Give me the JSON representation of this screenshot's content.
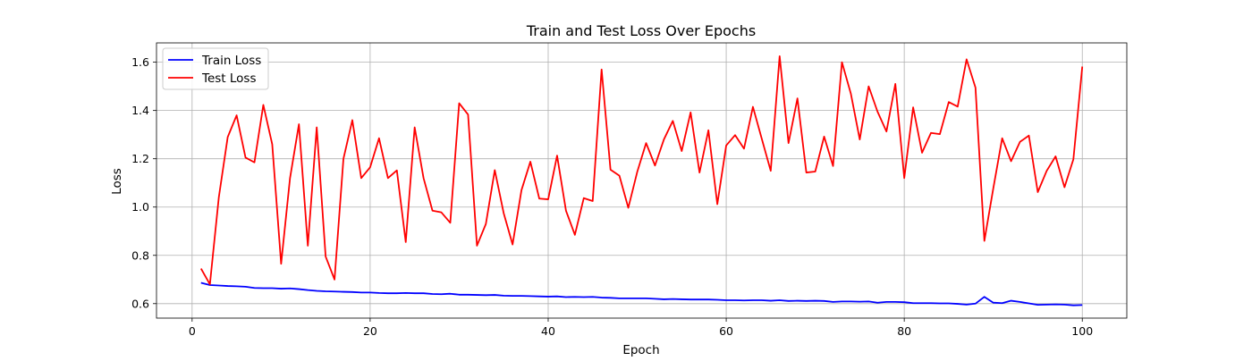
{
  "chart_data": {
    "type": "line",
    "title": "Train and Test Loss Over Epochs",
    "xlabel": "Epoch",
    "ylabel": "Loss",
    "xlim": [
      -4,
      105
    ],
    "ylim": [
      0.54,
      1.68
    ],
    "xticks": [
      0,
      20,
      40,
      60,
      80,
      100
    ],
    "yticks": [
      0.6,
      0.8,
      1.0,
      1.2,
      1.4,
      1.6
    ],
    "ytick_labels": [
      "0.6",
      "0.8",
      "1.0",
      "1.2",
      "1.4",
      "1.6"
    ],
    "grid": true,
    "legend_position": "top-left",
    "x": [
      1,
      2,
      3,
      4,
      5,
      6,
      7,
      8,
      9,
      10,
      11,
      12,
      13,
      14,
      15,
      16,
      17,
      18,
      19,
      20,
      21,
      22,
      23,
      24,
      25,
      26,
      27,
      28,
      29,
      30,
      31,
      32,
      33,
      34,
      35,
      36,
      37,
      38,
      39,
      40,
      41,
      42,
      43,
      44,
      45,
      46,
      47,
      48,
      49,
      50,
      51,
      52,
      53,
      54,
      55,
      56,
      57,
      58,
      59,
      60,
      61,
      62,
      63,
      64,
      65,
      66,
      67,
      68,
      69,
      70,
      71,
      72,
      73,
      74,
      75,
      76,
      77,
      78,
      79,
      80,
      81,
      82,
      83,
      84,
      85,
      86,
      87,
      88,
      89,
      90,
      91,
      92,
      93,
      94,
      95,
      96,
      97,
      98,
      99,
      100
    ],
    "series": [
      {
        "name": "Train Loss",
        "color": "#0000ff",
        "values": [
          0.686,
          0.677,
          0.675,
          0.673,
          0.672,
          0.67,
          0.665,
          0.664,
          0.664,
          0.662,
          0.663,
          0.66,
          0.656,
          0.653,
          0.651,
          0.65,
          0.649,
          0.648,
          0.646,
          0.646,
          0.644,
          0.643,
          0.643,
          0.644,
          0.643,
          0.643,
          0.64,
          0.639,
          0.641,
          0.637,
          0.637,
          0.636,
          0.635,
          0.636,
          0.633,
          0.632,
          0.632,
          0.631,
          0.63,
          0.629,
          0.63,
          0.627,
          0.628,
          0.627,
          0.628,
          0.625,
          0.624,
          0.622,
          0.622,
          0.622,
          0.622,
          0.62,
          0.618,
          0.619,
          0.618,
          0.617,
          0.617,
          0.617,
          0.616,
          0.614,
          0.614,
          0.613,
          0.614,
          0.614,
          0.612,
          0.614,
          0.611,
          0.612,
          0.611,
          0.612,
          0.611,
          0.607,
          0.609,
          0.609,
          0.608,
          0.609,
          0.604,
          0.607,
          0.607,
          0.606,
          0.602,
          0.602,
          0.602,
          0.601,
          0.601,
          0.599,
          0.596,
          0.6,
          0.628,
          0.604,
          0.602,
          0.612,
          0.607,
          0.601,
          0.595,
          0.596,
          0.597,
          0.596,
          0.593,
          0.594
        ]
      },
      {
        "name": "Test Loss",
        "color": "#ff0000",
        "values": [
          0.745,
          0.68,
          1.04,
          1.29,
          1.38,
          1.205,
          1.185,
          1.423,
          1.26,
          0.765,
          1.12,
          1.343,
          0.84,
          1.33,
          0.795,
          0.7,
          1.2,
          1.36,
          1.12,
          1.165,
          1.285,
          1.12,
          1.152,
          0.855,
          1.33,
          1.12,
          0.985,
          0.978,
          0.935,
          1.43,
          1.383,
          0.84,
          0.93,
          1.153,
          0.975,
          0.845,
          1.07,
          1.188,
          1.035,
          1.032,
          1.213,
          0.985,
          0.885,
          1.037,
          1.025,
          1.57,
          1.155,
          1.13,
          0.997,
          1.145,
          1.265,
          1.172,
          1.28,
          1.357,
          1.232,
          1.392,
          1.143,
          1.318,
          1.012,
          1.255,
          1.298,
          1.242,
          1.415,
          1.282,
          1.15,
          1.625,
          1.265,
          1.45,
          1.143,
          1.147,
          1.292,
          1.17,
          1.6,
          1.47,
          1.28,
          1.5,
          1.395,
          1.313,
          1.51,
          1.12,
          1.413,
          1.225,
          1.307,
          1.302,
          1.435,
          1.416,
          1.612,
          1.495,
          0.86,
          1.077,
          1.285,
          1.19,
          1.27,
          1.296,
          1.062,
          1.15,
          1.21,
          1.082,
          1.198,
          1.582
        ]
      }
    ]
  }
}
